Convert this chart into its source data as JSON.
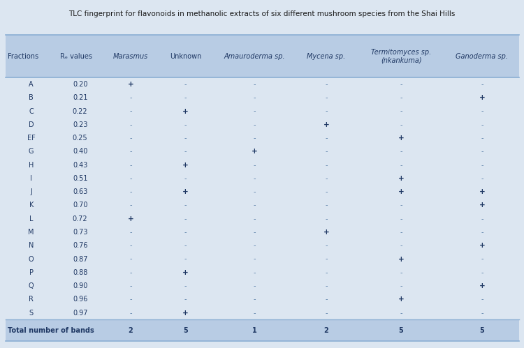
{
  "title": "TLC fingerprint for flavonoids in methanolic extracts of six different mushroom species from the Shai Hills",
  "columns": [
    "Fractions",
    "Rₑ values",
    "Marasmus",
    "Unknown",
    "Amauroderma sp.",
    "Mycena sp.",
    "Termitomyces sp.\n(nkankuma)",
    "Ganoderma sp."
  ],
  "col_italic": [
    false,
    false,
    true,
    false,
    true,
    true,
    true,
    true
  ],
  "fractions": [
    "A",
    "B",
    "C",
    "D",
    "EF",
    "G",
    "H",
    "I",
    "J",
    "K",
    "L",
    "M",
    "N",
    "O",
    "P",
    "Q",
    "R",
    "S"
  ],
  "rf_values": [
    "0.20",
    "0.21",
    "0.22",
    "0.23",
    "0.25",
    "0.40",
    "0.43",
    "0.51",
    "0.63",
    "0.70",
    "0.72",
    "0.73",
    "0.76",
    "0.87",
    "0.88",
    "0.90",
    "0.96",
    "0.97"
  ],
  "data": {
    "Marasmus": [
      "+",
      "-",
      "-",
      "-",
      "-",
      "-",
      "-",
      "-",
      "-",
      "-",
      "+",
      "-",
      "-",
      "-",
      "-",
      "-",
      "-",
      "-"
    ],
    "Unknown": [
      "-",
      "-",
      "+",
      "-",
      "-",
      "-",
      "+",
      "-",
      "+",
      "-",
      "-",
      "-",
      "-",
      "-",
      "+",
      "-",
      "-",
      "+"
    ],
    "Amauroderma sp.": [
      "-",
      "-",
      "-",
      "-",
      "-",
      "+",
      "-",
      "-",
      "-",
      "-",
      "-",
      "-",
      "-",
      "-",
      "-",
      "-",
      "-",
      "-"
    ],
    "Mycena sp.": [
      "-",
      "-",
      "-",
      "+",
      "-",
      "-",
      "-",
      "-",
      "-",
      "-",
      "-",
      "+",
      "-",
      "-",
      "-",
      "-",
      "-",
      "-"
    ],
    "Termitomyces sp.\n(nkankuma)": [
      "-",
      "-",
      "-",
      "-",
      "+",
      "-",
      "-",
      "+",
      "+",
      "-",
      "-",
      "-",
      "-",
      "+",
      "-",
      "-",
      "+",
      "-"
    ],
    "Ganoderma sp.": [
      "-",
      "+",
      "-",
      "-",
      "-",
      "-",
      "-",
      "-",
      "+",
      "+",
      "-",
      "-",
      "+",
      "-",
      "-",
      "+",
      "-",
      "-"
    ]
  },
  "totals": [
    "2",
    "5",
    "1",
    "2",
    "5",
    "5"
  ],
  "bg_color": "#dce6f1",
  "header_bg": "#b8cce4",
  "total_row_bg": "#b8cce4",
  "border_color": "#ffffff",
  "text_color": "#1f3864",
  "title_color": "#1a1a1a",
  "plus_color": "#1f3864",
  "minus_color": "#5a7fa8"
}
